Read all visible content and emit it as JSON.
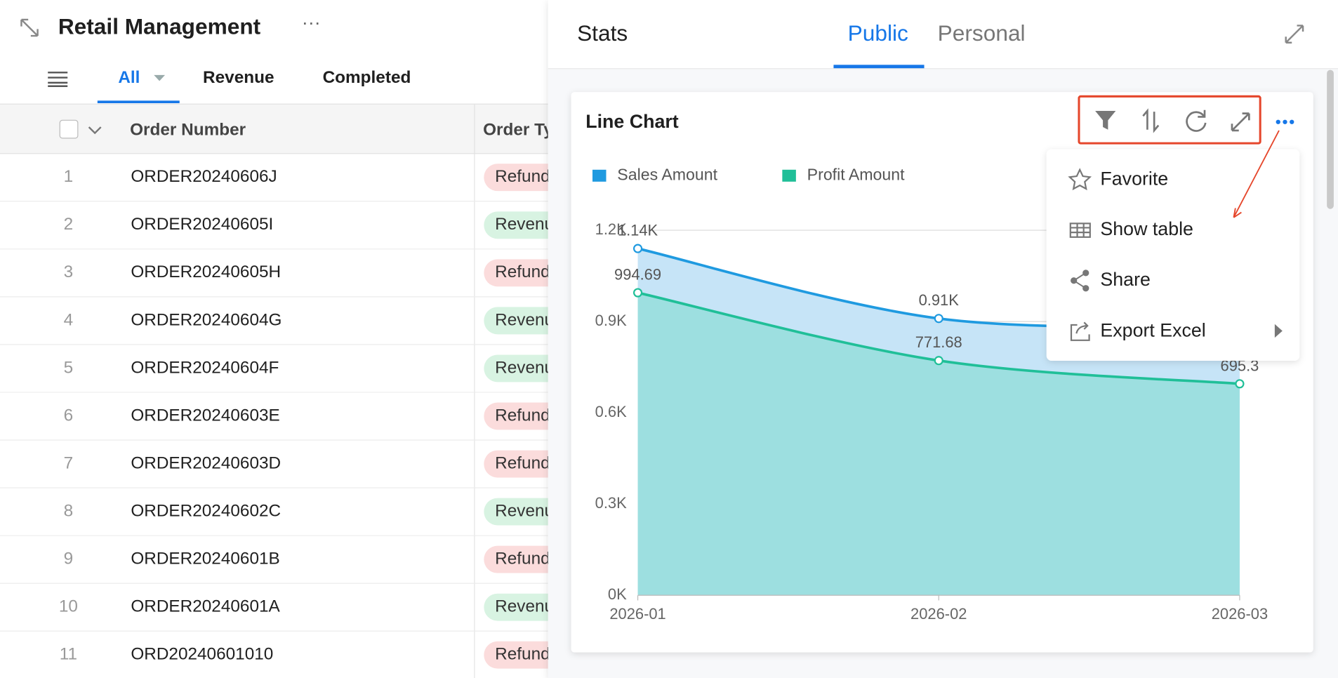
{
  "header": {
    "title": "Retail Management"
  },
  "views": [
    "All",
    "Revenue",
    "Completed"
  ],
  "table": {
    "columns": [
      "Order Number",
      "Order Type"
    ],
    "rows": [
      {
        "number": 1,
        "order_number": "ORDER20240606J",
        "order_type": "Refund",
        "tag_color": "#fbdcdc"
      },
      {
        "number": 2,
        "order_number": "ORDER20240605I",
        "order_type": "Revenue",
        "tag_color": "#d8f3e2"
      },
      {
        "number": 3,
        "order_number": "ORDER20240605H",
        "order_type": "Refund",
        "tag_color": "#fbdcdc"
      },
      {
        "number": 4,
        "order_number": "ORDER20240604G",
        "order_type": "Revenue",
        "tag_color": "#d8f3e2"
      },
      {
        "number": 5,
        "order_number": "ORDER20240604F",
        "order_type": "Revenue",
        "tag_color": "#d8f3e2"
      },
      {
        "number": 6,
        "order_number": "ORDER20240603E",
        "order_type": "Refund",
        "tag_color": "#fbdcdc"
      },
      {
        "number": 7,
        "order_number": "ORDER20240603D",
        "order_type": "Refund",
        "tag_color": "#fbdcdc"
      },
      {
        "number": 8,
        "order_number": "ORDER20240602C",
        "order_type": "Revenue",
        "tag_color": "#d8f3e2"
      },
      {
        "number": 9,
        "order_number": "ORDER20240601B",
        "order_type": "Refund",
        "tag_color": "#fbdcdc"
      },
      {
        "number": 10,
        "order_number": "ORDER20240601A",
        "order_type": "Revenue",
        "tag_color": "#d8f3e2"
      },
      {
        "number": 11,
        "order_number": "ORD20240601010",
        "order_type": "Refund",
        "tag_color": "#fbdcdc"
      }
    ]
  },
  "stats": {
    "title": "Stats",
    "tabs": [
      "Public",
      "Personal"
    ]
  },
  "menu": [
    "Favorite",
    "Show table",
    "Share",
    "Export Excel"
  ],
  "chart_data": {
    "type": "line",
    "title": "Line Chart",
    "categories": [
      "2026-01",
      "2026-02",
      "2026-03"
    ],
    "series": [
      {
        "name": "Sales Amount",
        "color": "#1f9ae0",
        "area_color": "#c6e4f7",
        "values": [
          1140,
          910,
          885
        ],
        "value_labels": [
          "1.14K",
          "0.91K",
          null
        ]
      },
      {
        "name": "Profit Amount",
        "color": "#20bf98",
        "area_color": "#9ddfe0",
        "values": [
          994.69,
          771.68,
          695.3
        ]
      }
    ],
    "ylim": [
      0,
      1200
    ],
    "yticks": [
      {
        "value": 0,
        "label": "0K"
      },
      {
        "value": 300,
        "label": "0.3K"
      },
      {
        "value": 600,
        "label": "0.6K"
      },
      {
        "value": 900,
        "label": "0.9K"
      },
      {
        "value": 1200,
        "label": "1.2K"
      }
    ],
    "grid": true
  }
}
